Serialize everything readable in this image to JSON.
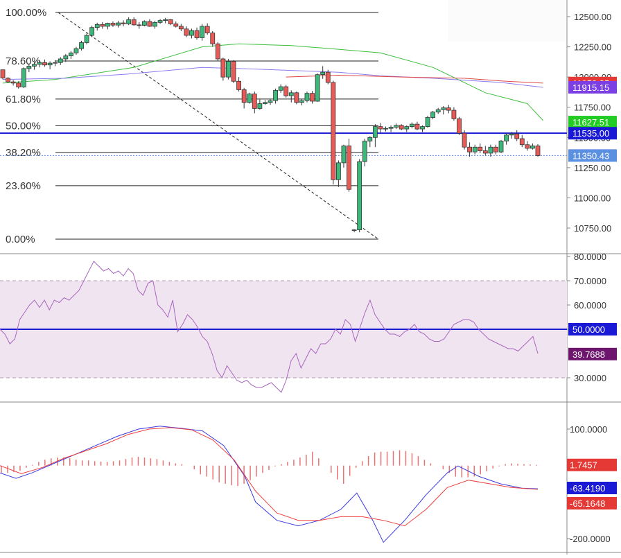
{
  "chart_data": [
    {
      "type": "candlestick",
      "title": "",
      "price_axis": {
        "ticks": [
          "12500.00",
          "12250.00",
          "12000.00",
          "11750.00",
          "11500.00",
          "11250.00",
          "11000.00",
          "10750.00"
        ],
        "tick_values": [
          12500,
          12250,
          12000,
          11750,
          11500,
          11250,
          11000,
          10750
        ],
        "ylim": [
          10680,
          12580
        ]
      },
      "fibonacci": {
        "high": 12500,
        "low": 10715,
        "levels": [
          {
            "label": "100.00%",
            "ratio": 1.0
          },
          {
            "label": "78.60%",
            "ratio": 0.786
          },
          {
            "label": "61.80%",
            "ratio": 0.618
          },
          {
            "label": "50.00%",
            "ratio": 0.5
          },
          {
            "label": "38.20%",
            "ratio": 0.382
          },
          {
            "label": "23.60%",
            "ratio": 0.236
          },
          {
            "label": "0.00%",
            "ratio": 0.0
          }
        ]
      },
      "horizontal_line": {
        "value": 11535.0,
        "label": "11535.00",
        "color": "#1a1ad6"
      },
      "last_price_line": {
        "value": 11350.43,
        "label": "11350.43",
        "color": "#5b8fe0"
      },
      "price_labels": [
        {
          "label": "11950.35",
          "value": 11950.35,
          "color": "#e53935"
        },
        {
          "label": "11915.15",
          "value": 11915.15,
          "color": "#7b3fe4"
        },
        {
          "label": "11627.51",
          "value": 11627.51,
          "color": "#22cc22"
        },
        {
          "label": "11535.00",
          "value": 11535.0,
          "color": "#1a1ad6"
        },
        {
          "label": "11350.43",
          "value": 11350.43,
          "color": "#5b8fe0"
        }
      ],
      "ohlc": [
        [
          12060,
          12050,
          11980,
          11992
        ],
        [
          11990,
          12000,
          11950,
          11960
        ],
        [
          11960,
          11975,
          11930,
          11950
        ],
        [
          11950,
          11965,
          11905,
          11918
        ],
        [
          11918,
          12080,
          11910,
          12070
        ],
        [
          12070,
          12110,
          12040,
          12090
        ],
        [
          12090,
          12125,
          12060,
          12105
        ],
        [
          12105,
          12140,
          12080,
          12120
        ],
        [
          12120,
          12145,
          12085,
          12100
        ],
        [
          12100,
          12130,
          12065,
          12115
        ],
        [
          12115,
          12140,
          12090,
          12120
        ],
        [
          12120,
          12165,
          12100,
          12150
        ],
        [
          12150,
          12190,
          12125,
          12175
        ],
        [
          12175,
          12215,
          12150,
          12200
        ],
        [
          12200,
          12250,
          12185,
          12235
        ],
        [
          12235,
          12300,
          12220,
          12285
        ],
        [
          12285,
          12360,
          12270,
          12345
        ],
        [
          12345,
          12425,
          12330,
          12410
        ],
        [
          12410,
          12450,
          12385,
          12435
        ],
        [
          12435,
          12455,
          12400,
          12420
        ],
        [
          12420,
          12450,
          12395,
          12445
        ],
        [
          12445,
          12460,
          12415,
          12430
        ],
        [
          12430,
          12465,
          12410,
          12448
        ],
        [
          12448,
          12470,
          12420,
          12440
        ],
        [
          12440,
          12495,
          12430,
          12475
        ],
        [
          12475,
          12495,
          12425,
          12432
        ],
        [
          12432,
          12455,
          12400,
          12428
        ],
        [
          12428,
          12470,
          12420,
          12460
        ],
        [
          12460,
          12480,
          12415,
          12420
        ],
        [
          12420,
          12465,
          12400,
          12452
        ],
        [
          12452,
          12480,
          12440,
          12468
        ],
        [
          12468,
          12490,
          12445,
          12475
        ],
        [
          12475,
          12480,
          12430,
          12440
        ],
        [
          12440,
          12460,
          12410,
          12420
        ],
        [
          12420,
          12440,
          12380,
          12398
        ],
        [
          12398,
          12420,
          12330,
          12345
        ],
        [
          12345,
          12400,
          12320,
          12385
        ],
        [
          12385,
          12410,
          12310,
          12325
        ],
        [
          12325,
          12440,
          12300,
          12420
        ],
        [
          12420,
          12445,
          12350,
          12365
        ],
        [
          12365,
          12380,
          12250,
          12275
        ],
        [
          12275,
          12290,
          12130,
          12150
        ],
        [
          12150,
          12160,
          11970,
          12000
        ],
        [
          12000,
          12150,
          11980,
          12130
        ],
        [
          12130,
          12140,
          11950,
          11965
        ],
        [
          11965,
          12000,
          11880,
          11895
        ],
        [
          11895,
          11910,
          11740,
          11790
        ],
        [
          11790,
          11870,
          11780,
          11860
        ],
        [
          11860,
          11880,
          11700,
          11740
        ],
        [
          11740,
          11815,
          11730,
          11780
        ],
        [
          11780,
          11810,
          11770,
          11790
        ],
        [
          11790,
          11820,
          11770,
          11805
        ],
        [
          11805,
          11905,
          11780,
          11890
        ],
        [
          11890,
          11940,
          11870,
          11920
        ],
        [
          11920,
          11935,
          11830,
          11845
        ],
        [
          11845,
          11890,
          11790,
          11870
        ],
        [
          11870,
          11880,
          11775,
          11790
        ],
        [
          11790,
          11820,
          11765,
          11805
        ],
        [
          11805,
          11880,
          11790,
          11865
        ],
        [
          11865,
          11885,
          11780,
          11800
        ],
        [
          11800,
          12030,
          11795,
          12020
        ],
        [
          12020,
          12090,
          11985,
          12040
        ],
        [
          12040,
          12060,
          11940,
          11955
        ],
        [
          11955,
          11970,
          11110,
          11150
        ],
        [
          11150,
          11310,
          11090,
          11290
        ],
        [
          11290,
          11440,
          11250,
          11430
        ],
        [
          11430,
          11490,
          11050,
          11070
        ],
        [
          10730,
          10740,
          10715,
          10735
        ],
        [
          10735,
          11320,
          10715,
          11300
        ],
        [
          11300,
          11490,
          11260,
          11470
        ],
        [
          11470,
          11510,
          11420,
          11500
        ],
        [
          11500,
          11610,
          11420,
          11590
        ],
        [
          11590,
          11620,
          11540,
          11570
        ],
        [
          11570,
          11590,
          11550,
          11575
        ],
        [
          11575,
          11600,
          11545,
          11585
        ],
        [
          11585,
          11615,
          11570,
          11600
        ],
        [
          11600,
          11610,
          11560,
          11570
        ],
        [
          11570,
          11600,
          11545,
          11590
        ],
        [
          11590,
          11625,
          11575,
          11610
        ],
        [
          11610,
          11630,
          11560,
          11570
        ],
        [
          11570,
          11600,
          11545,
          11590
        ],
        [
          11590,
          11680,
          11580,
          11665
        ],
        [
          11665,
          11720,
          11650,
          11710
        ],
        [
          11710,
          11745,
          11695,
          11730
        ],
        [
          11730,
          11760,
          11690,
          11745
        ],
        [
          11745,
          11770,
          11700,
          11725
        ],
        [
          11725,
          11750,
          11640,
          11655
        ],
        [
          11655,
          11670,
          11520,
          11535
        ],
        [
          11535,
          11560,
          11400,
          11420
        ],
        [
          11420,
          11460,
          11340,
          11380
        ],
        [
          11380,
          11440,
          11360,
          11420
        ],
        [
          11420,
          11450,
          11370,
          11390
        ],
        [
          11390,
          11430,
          11350,
          11370
        ],
        [
          11370,
          11440,
          11340,
          11420
        ],
        [
          11420,
          11440,
          11360,
          11380
        ],
        [
          11380,
          11480,
          11370,
          11470
        ],
        [
          11470,
          11540,
          11440,
          11520
        ],
        [
          11520,
          11545,
          11490,
          11530
        ],
        [
          11530,
          11560,
          11470,
          11490
        ],
        [
          11490,
          11520,
          11420,
          11440
        ],
        [
          11440,
          11470,
          11390,
          11410
        ],
        [
          11410,
          11450,
          11400,
          11430
        ],
        [
          11430,
          11445,
          11340,
          11350
        ]
      ],
      "moving_averages": [
        {
          "color": "#3cbe3c",
          "label": "11627.51",
          "points": [
            [
              0,
              11950
            ],
            [
              10,
              11980
            ],
            [
              25,
              12080
            ],
            [
              38,
              12250
            ],
            [
              45,
              12275
            ],
            [
              55,
              12260
            ],
            [
              64,
              12230
            ],
            [
              72,
              12200
            ],
            [
              82,
              12080
            ],
            [
              92,
              11870
            ],
            [
              100,
              11780
            ],
            [
              103,
              11640
            ]
          ]
        },
        {
          "color": "#8a7cf0",
          "label": "11915.15",
          "points": [
            [
              0,
              11980
            ],
            [
              12,
              11990
            ],
            [
              24,
              12025
            ],
            [
              38,
              12080
            ],
            [
              52,
              12060
            ],
            [
              64,
              12040
            ],
            [
              72,
              12010
            ],
            [
              82,
              11990
            ],
            [
              95,
              11955
            ],
            [
              103,
              11915
            ]
          ]
        },
        {
          "color": "#e04848",
          "label": "11950.35",
          "points": [
            [
              54,
              12000
            ],
            [
              64,
              12015
            ],
            [
              76,
              12000
            ],
            [
              88,
              11990
            ],
            [
              96,
              11965
            ],
            [
              103,
              11950
            ]
          ]
        }
      ]
    },
    {
      "type": "line",
      "title": "",
      "axis": {
        "ticks": [
          "80.0000",
          "70.0000",
          "60.0000",
          "50.0000",
          "30.0000"
        ],
        "tick_values": [
          80,
          70,
          60,
          50,
          30
        ],
        "ylim": [
          26,
          81
        ]
      },
      "band": {
        "upper": 70,
        "lower": 30,
        "fill": "#f1e4f1"
      },
      "midline": {
        "value": 50,
        "label": "50.0000",
        "color": "#1a1ad6"
      },
      "current": {
        "value": 39.7688,
        "label": "39.7688",
        "color": "#6e166e"
      },
      "values": [
        50,
        48,
        44,
        46,
        54,
        57,
        60,
        62,
        59,
        62,
        58,
        62,
        61,
        63,
        62,
        64,
        66,
        70,
        74,
        78,
        76,
        74,
        75,
        73,
        74,
        72,
        75,
        73,
        66,
        64,
        69,
        70,
        60,
        58,
        55,
        62,
        49,
        52,
        56,
        54,
        51,
        47,
        45,
        40,
        33,
        30,
        35,
        32,
        29,
        28,
        29,
        27,
        26,
        26,
        27,
        28,
        26,
        24,
        29,
        37,
        40,
        34,
        38,
        42,
        40,
        44,
        44,
        46,
        50,
        48,
        54,
        52,
        45,
        51,
        57,
        62,
        56,
        53,
        50,
        48,
        48,
        47,
        49,
        50,
        52,
        49,
        48,
        46,
        45,
        45,
        46,
        49,
        52,
        53,
        54,
        54,
        53,
        50,
        48,
        46,
        45,
        44,
        43,
        42,
        42,
        41,
        43,
        45,
        47,
        40
      ]
    },
    {
      "type": "bar+line",
      "title": "",
      "axis": {
        "ticks": [
          "100.0000",
          "-200.0000"
        ],
        "tick_values": [
          100,
          -200
        ],
        "ylim": [
          -225,
          128
        ]
      },
      "histogram_color": "#e57373",
      "labels": [
        {
          "label": "1.7457",
          "value": 1.7457,
          "color": "#e53935"
        },
        {
          "label": "-63.4190",
          "value": -63.419,
          "color": "#1a1ad6"
        },
        {
          "label": "-65.1648",
          "value": -65.1648,
          "color": "#e53935"
        }
      ],
      "histogram": [
        -20,
        -20,
        -18,
        -14,
        -6,
        2,
        10,
        16,
        20,
        22,
        22,
        20,
        16,
        14,
        14,
        12,
        11,
        10,
        12,
        14,
        18,
        22,
        24,
        22,
        20,
        18,
        14,
        10,
        6,
        4,
        0,
        -10,
        -24,
        -30,
        -38,
        -46,
        -50,
        -54,
        -56,
        -50,
        -40,
        -30,
        -20,
        -12,
        -2,
        4,
        10,
        16,
        22,
        30,
        38,
        20,
        0,
        -20,
        -38,
        -50,
        -28,
        -6,
        12,
        26,
        36,
        38,
        38,
        40,
        42,
        40,
        34,
        26,
        16,
        6,
        0,
        -10,
        -20,
        -30,
        -32,
        -32,
        -30,
        -24,
        -16,
        -8,
        -2,
        4,
        6,
        5,
        4,
        3,
        2
      ],
      "macd": [
        [
          0,
          -20
        ],
        [
          3,
          -35
        ],
        [
          6,
          -20
        ],
        [
          10,
          5
        ],
        [
          14,
          30
        ],
        [
          18,
          55
        ],
        [
          22,
          80
        ],
        [
          26,
          100
        ],
        [
          30,
          108
        ],
        [
          34,
          102
        ],
        [
          38,
          95
        ],
        [
          42,
          55
        ],
        [
          46,
          -30
        ],
        [
          48,
          -100
        ],
        [
          52,
          -150
        ],
        [
          56,
          -165
        ],
        [
          60,
          -150
        ],
        [
          64,
          -120
        ],
        [
          67,
          -75
        ],
        [
          70,
          -150
        ],
        [
          72,
          -210
        ],
        [
          76,
          -150
        ],
        [
          80,
          -80
        ],
        [
          84,
          -20
        ],
        [
          86,
          -1
        ],
        [
          90,
          -30
        ],
        [
          94,
          -50
        ],
        [
          98,
          -62
        ],
        [
          101,
          -63.4
        ]
      ],
      "signal": [
        [
          0,
          0
        ],
        [
          4,
          -22
        ],
        [
          8,
          -5
        ],
        [
          12,
          20
        ],
        [
          16,
          40
        ],
        [
          20,
          60
        ],
        [
          24,
          85
        ],
        [
          28,
          100
        ],
        [
          32,
          104
        ],
        [
          36,
          98
        ],
        [
          40,
          70
        ],
        [
          44,
          15
        ],
        [
          48,
          -70
        ],
        [
          52,
          -130
        ],
        [
          56,
          -150
        ],
        [
          60,
          -150
        ],
        [
          64,
          -140
        ],
        [
          68,
          -140
        ],
        [
          72,
          -150
        ],
        [
          76,
          -165
        ],
        [
          80,
          -120
        ],
        [
          84,
          -60
        ],
        [
          88,
          -40
        ],
        [
          92,
          -50
        ],
        [
          96,
          -60
        ],
        [
          101,
          -65.2
        ]
      ]
    }
  ]
}
